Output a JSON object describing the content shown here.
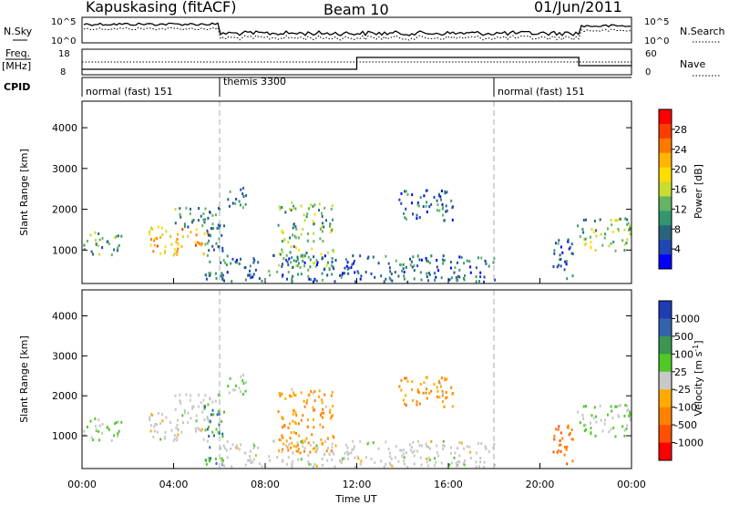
{
  "header": {
    "station": "Kapuskasing (fitACF)",
    "beam": "Beam 10",
    "date": "01/Jun/2011"
  },
  "noise_panel": {
    "left_label": "N.Sky",
    "right_label": "N.Search",
    "left_ticks": [
      "10^5",
      "10^0"
    ],
    "right_ticks": [
      "10^5",
      "10^0"
    ]
  },
  "freq_panel": {
    "left_label_1": "Freq.",
    "left_label_2": "[MHz]",
    "right_label": "Nave",
    "left_ticks": [
      "18",
      "8"
    ],
    "right_ticks": [
      "60",
      "0"
    ]
  },
  "cpid": {
    "label": "CPID",
    "segments": [
      {
        "text": "normal (fast) 151",
        "start_h": 0
      },
      {
        "text": "themis 3300",
        "start_h": 6
      },
      {
        "text": "normal (fast) 151",
        "start_h": 18
      }
    ]
  },
  "power_colorbar": {
    "title": "Power [dB]",
    "ticks": [
      "28",
      "24",
      "20",
      "16",
      "12",
      "8",
      "4"
    ],
    "colors": [
      "#ff0000",
      "#ff3c00",
      "#ff7800",
      "#ffb400",
      "#ffdc00",
      "#c8dc32",
      "#64b464",
      "#32966e",
      "#28647d",
      "#1e46b4",
      "#0000ff"
    ]
  },
  "velocity_colorbar": {
    "title": "Velocity [m s^-1]",
    "ticks": [
      "1000",
      "500",
      "100",
      "25",
      "-25",
      "-100",
      "-500",
      "-1000"
    ],
    "colors": [
      "#1e3cb4",
      "#3264aa",
      "#3c9650",
      "#50c828",
      "#c8c8c8",
      "#ffaa00",
      "#ff8200",
      "#ff5000",
      "#ff0000"
    ]
  },
  "axes": {
    "ylabel": "Slant Range [km]",
    "yticks": [
      "1000",
      "2000",
      "3000",
      "4000"
    ],
    "xticks": [
      "00:00",
      "04:00",
      "08:00",
      "12:00",
      "16:00",
      "20:00",
      "00:00"
    ],
    "xlabel": "Time UT"
  },
  "chart_data": {
    "type": "heatmap",
    "title": "Kapuskasing (fitACF) Beam 10 01/Jun/2011",
    "xlabel": "Time UT",
    "ylabel": "Slant Range [km]",
    "xlim_hours": [
      0,
      24
    ],
    "ylim_km": [
      180,
      4650
    ],
    "mode_change_hours": [
      6,
      18
    ],
    "scatter_regions": [
      {
        "t": [
          0.0,
          1.7
        ],
        "r": [
          900,
          1500
        ],
        "power_db": 10,
        "velocity": 25
      },
      {
        "t": [
          2.9,
          5.5
        ],
        "r": [
          900,
          1600
        ],
        "power_db": 20,
        "velocity": 0
      },
      {
        "t": [
          4.0,
          6.0
        ],
        "r": [
          1500,
          2100
        ],
        "power_db": 8,
        "velocity": 0
      },
      {
        "t": [
          5.3,
          6.2
        ],
        "r": [
          300,
          1800
        ],
        "power_db": 8,
        "velocity": 100
      },
      {
        "t": [
          6.3,
          7.2
        ],
        "r": [
          2000,
          2600
        ],
        "power_db": 8,
        "velocity": 25
      },
      {
        "t": [
          8.5,
          11.0
        ],
        "r": [
          600,
          2200
        ],
        "power_db": 12,
        "velocity": -100
      },
      {
        "t": [
          6.0,
          18.0
        ],
        "r": [
          250,
          900
        ],
        "power_db": 6,
        "velocity": 0
      },
      {
        "t": [
          13.8,
          16.2
        ],
        "r": [
          1700,
          2500
        ],
        "power_db": 6,
        "velocity": -100
      },
      {
        "t": [
          20.5,
          21.5
        ],
        "r": [
          300,
          1300
        ],
        "power_db": 6,
        "velocity": -500
      },
      {
        "t": [
          21.5,
          24.0
        ],
        "r": [
          1000,
          1800
        ],
        "power_db": 12,
        "velocity": 25
      }
    ]
  }
}
